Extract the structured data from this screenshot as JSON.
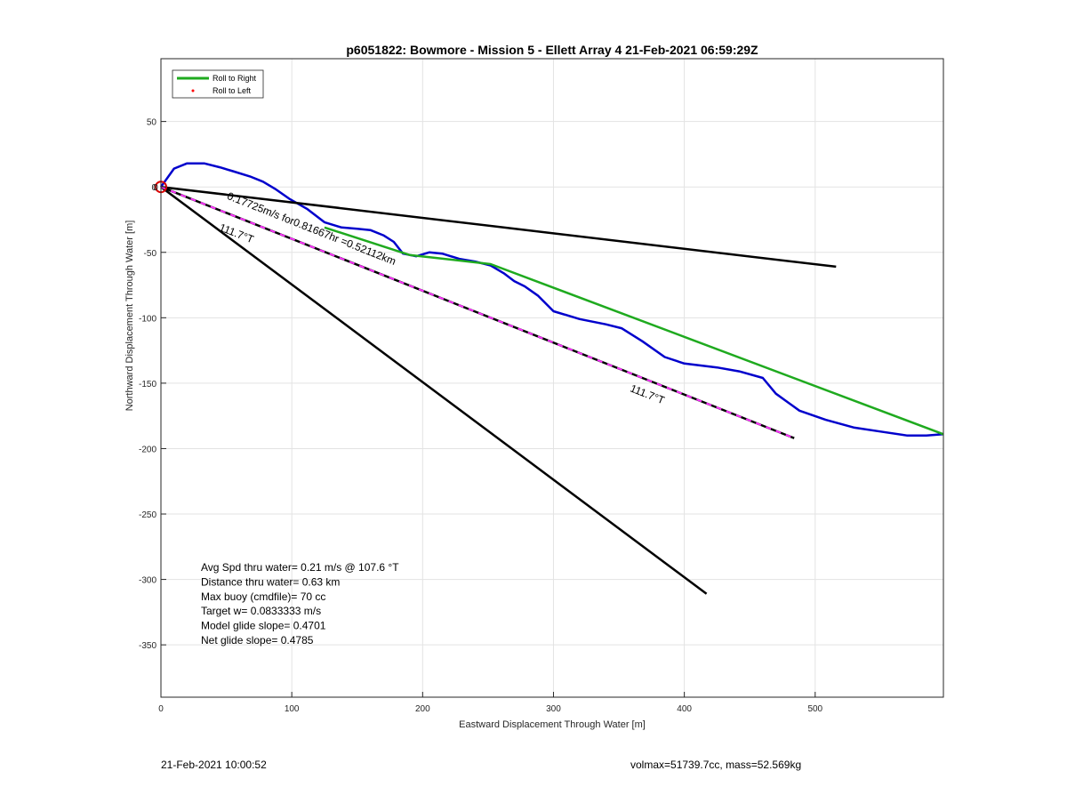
{
  "chart_data": {
    "type": "line",
    "title": "p6051822: Bowmore - Mission 5 - Ellett Array 4 21-Feb-2021 06:59:29Z",
    "xlabel": "Eastward Displacement Through Water [m]",
    "ylabel": "Northward Displacement Through Water [m]",
    "xlim": [
      0,
      598
    ],
    "ylim": [
      -390,
      98
    ],
    "xticks": [
      0,
      100,
      200,
      300,
      400,
      500
    ],
    "yticks": [
      50,
      0,
      -50,
      -100,
      -150,
      -200,
      -250,
      -300,
      -350
    ],
    "grid": true,
    "legend": {
      "placement": "top-left",
      "entries": [
        {
          "label": "Roll to Right",
          "color": "#1faa1f",
          "marker": "line"
        },
        {
          "label": "Roll to Left",
          "color": "#ff0000",
          "marker": "dot"
        }
      ]
    },
    "series": [
      {
        "color": "#0000cc",
        "points": [
          [
            0,
            0
          ],
          [
            10,
            14
          ],
          [
            20,
            18
          ],
          [
            33,
            18
          ],
          [
            45,
            15
          ],
          [
            55,
            12
          ],
          [
            68,
            8
          ],
          [
            78,
            4
          ],
          [
            88,
            -2
          ],
          [
            98,
            -9
          ],
          [
            112,
            -17
          ],
          [
            125,
            -27
          ],
          [
            138,
            -31
          ],
          [
            150,
            -32
          ],
          [
            160,
            -33
          ],
          [
            170,
            -37
          ],
          [
            178,
            -42
          ],
          [
            185,
            -51
          ],
          [
            195,
            -53
          ],
          [
            205,
            -50
          ],
          [
            215,
            -51
          ],
          [
            228,
            -55
          ],
          [
            240,
            -57
          ],
          [
            252,
            -60
          ],
          [
            262,
            -66
          ],
          [
            270,
            -72
          ],
          [
            278,
            -76
          ],
          [
            288,
            -83
          ],
          [
            300,
            -95
          ],
          [
            320,
            -101
          ],
          [
            340,
            -105
          ],
          [
            352,
            -108
          ],
          [
            368,
            -118
          ],
          [
            385,
            -130
          ],
          [
            400,
            -135
          ],
          [
            425,
            -138
          ],
          [
            442,
            -141
          ],
          [
            460,
            -146
          ],
          [
            470,
            -158
          ],
          [
            488,
            -171
          ],
          [
            508,
            -178
          ],
          [
            530,
            -184
          ],
          [
            550,
            -187
          ],
          [
            570,
            -190
          ],
          [
            585,
            -190
          ],
          [
            598,
            -189
          ]
        ]
      },
      {
        "color": "#1faa1f",
        "points": [
          [
            125,
            -31
          ],
          [
            190,
            -52
          ],
          [
            252,
            -59
          ],
          [
            598,
            -189
          ]
        ]
      },
      {
        "color": "#000000",
        "points": [
          [
            0,
            0
          ],
          [
            516,
            -61
          ]
        ]
      },
      {
        "color": "#000000",
        "points": [
          [
            0,
            0
          ],
          [
            417,
            -311
          ]
        ]
      },
      {
        "color": "#000000",
        "dash_color": "#ff33ff",
        "points": [
          [
            0,
            0
          ],
          [
            484,
            -192
          ]
        ]
      }
    ],
    "start_marker": {
      "x": 0,
      "y": 0,
      "color": "#dd0000",
      "label": "0"
    },
    "annotations": [
      {
        "text": "0.17725m/s for0.81667hr =0.52112km",
        "x": 50,
        "y": -9,
        "rotate": 21.6
      },
      {
        "text": "111.7°T",
        "x": 44,
        "y": -33,
        "rotate": 21.6
      },
      {
        "text": "111.7°T",
        "x": 358,
        "y": -156,
        "rotate": 21.6
      }
    ],
    "stats_text": [
      "Avg Spd thru water=  0.21 m/s @ 107.6 °T",
      "Distance thru water=  0.63 km",
      "Max buoy (cmdfile)= 70 cc",
      "Target w= 0.0833333 m/s",
      "Model glide slope= 0.4701",
      "Net glide slope= 0.4785"
    ]
  },
  "footer": {
    "date": "21-Feb-2021 10:00:52",
    "info": "volmax=51739.7cc, mass=52.569kg"
  }
}
